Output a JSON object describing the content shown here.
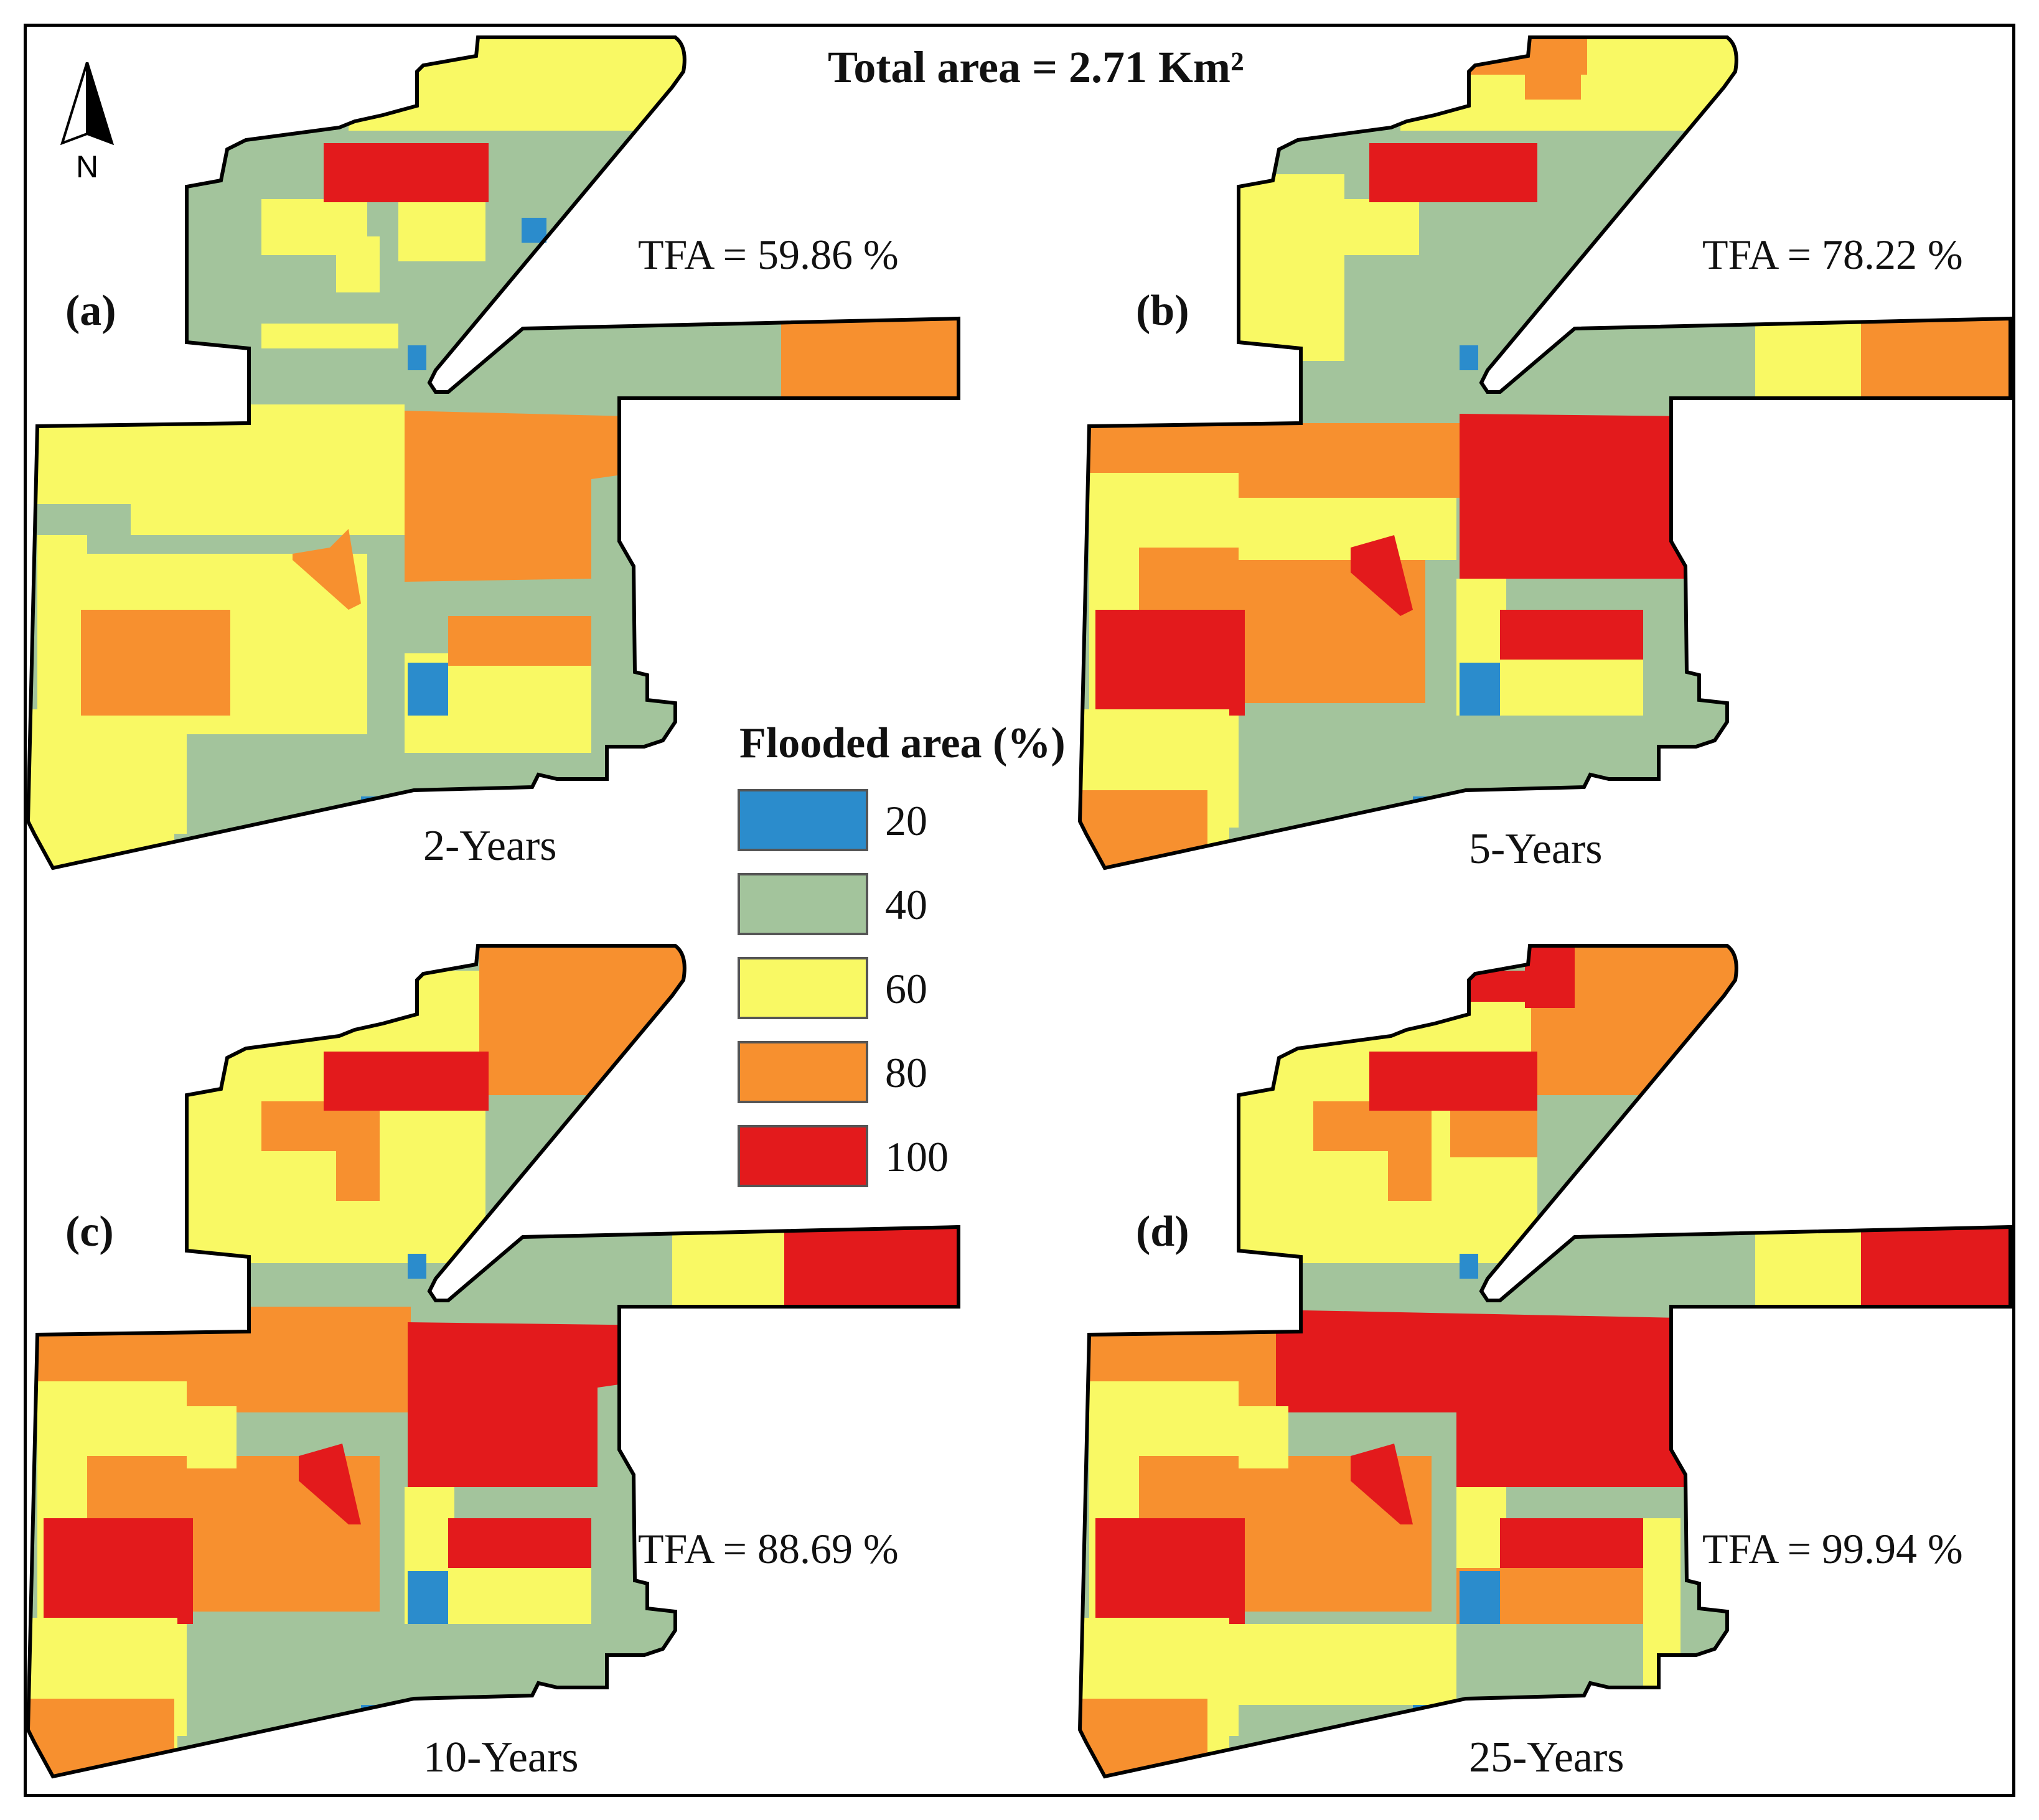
{
  "title": "Total area = 2.71 Km²",
  "north_label": "N",
  "legend": {
    "title": "Flooded area (%)",
    "items": [
      {
        "label": "20",
        "color": "#2b8ccc"
      },
      {
        "label": "40",
        "color": "#a3c49c"
      },
      {
        "label": "60",
        "color": "#f9f964"
      },
      {
        "label": "80",
        "color": "#f7902f"
      },
      {
        "label": "100",
        "color": "#e31a1c"
      }
    ]
  },
  "panels": [
    {
      "id": "a",
      "label": "(a)",
      "period": "2-Years",
      "tfa": "TFA = 59.86 %"
    },
    {
      "id": "b",
      "label": "(b)",
      "period": "5-Years",
      "tfa": "TFA = 78.22 %"
    },
    {
      "id": "c",
      "label": "(c)",
      "period": "10-Years",
      "tfa": "TFA = 88.69 %"
    },
    {
      "id": "d",
      "label": "(d)",
      "period": "25-Years",
      "tfa": "TFA = 99.94 %"
    }
  ],
  "colors": {
    "c20": "#2b8ccc",
    "c40": "#a3c49c",
    "c60": "#f9f964",
    "c80": "#f7902f",
    "c100": "#e31a1c"
  }
}
